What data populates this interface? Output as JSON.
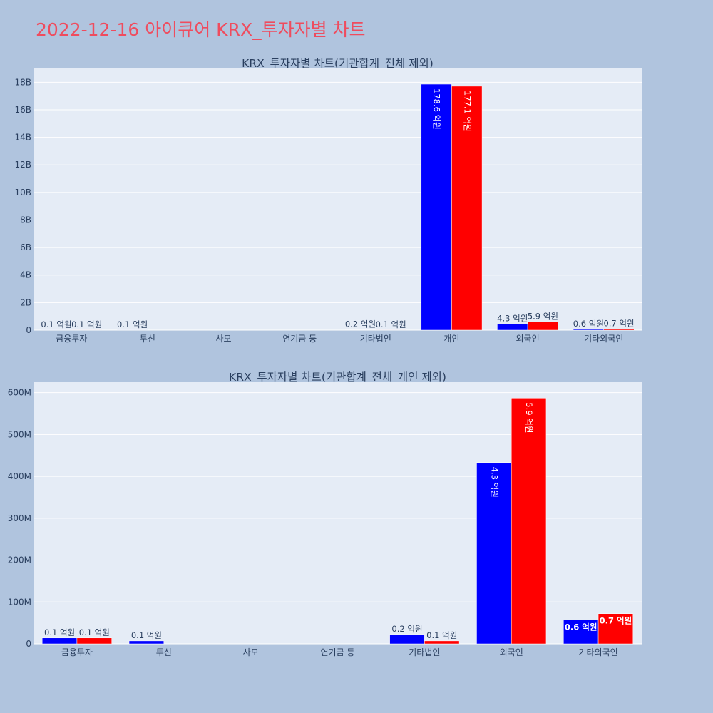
{
  "page_title": "2022-12-16 아이큐어 KRX_투자자별 차트",
  "chart_data": [
    {
      "type": "bar",
      "title": "KRX_투자자별 차트(기관합계_전체 제외)",
      "categories": [
        "금융투자",
        "투신",
        "사모",
        "연기금 등",
        "기타법인",
        "개인",
        "외국인",
        "기타외국인"
      ],
      "series": [
        {
          "color": "#0000ff",
          "values": [
            10000000,
            10000000,
            0,
            0,
            20000000,
            17860000000,
            430000000,
            60000000
          ],
          "labels": [
            "0.1 억원",
            "0.1 억원",
            "",
            "",
            "0.2 억원",
            "178.6 억원",
            "4.3 억원",
            "0.6 억원"
          ]
        },
        {
          "color": "#ff0000",
          "values": [
            10000000,
            0,
            0,
            0,
            10000000,
            17710000000,
            590000000,
            70000000
          ],
          "labels": [
            "0.1 억원",
            "",
            "",
            "",
            "0.1 억원",
            "177.1 억원",
            "5.9 억원",
            "0.7 억원"
          ]
        }
      ],
      "ylim": [
        0,
        19000000000
      ],
      "yticks": [
        0,
        2000000000,
        4000000000,
        6000000000,
        8000000000,
        10000000000,
        12000000000,
        14000000000,
        16000000000,
        18000000000
      ],
      "ytick_labels": [
        "0",
        "2B",
        "4B",
        "6B",
        "8B",
        "10B",
        "12B",
        "14B",
        "16B",
        "18B"
      ],
      "grid": true
    },
    {
      "type": "bar",
      "title": "KRX_투자자별 차트(기관합계_전체_개인 제외)",
      "categories": [
        "금융투자",
        "투신",
        "사모",
        "연기금 등",
        "기타법인",
        "외국인",
        "기타외국인"
      ],
      "series": [
        {
          "color": "#0000ff",
          "values": [
            14000000,
            7000000,
            0,
            0,
            22000000,
            433000000,
            57000000
          ],
          "labels": [
            "0.1 억원",
            "0.1 억원",
            "",
            "",
            "0.2 억원",
            "4.3 억원",
            "0.6 억원"
          ]
        },
        {
          "color": "#ff0000",
          "values": [
            14000000,
            0,
            0,
            0,
            7000000,
            587000000,
            72000000
          ],
          "labels": [
            "0.1 억원",
            "",
            "",
            "",
            "0.1 억원",
            "5.9 억원",
            "0.7 억원"
          ]
        }
      ],
      "ylim": [
        0,
        625000000
      ],
      "yticks": [
        0,
        100000000,
        200000000,
        300000000,
        400000000,
        500000000,
        600000000
      ],
      "ytick_labels": [
        "0",
        "100M",
        "200M",
        "300M",
        "400M",
        "500M",
        "600M"
      ],
      "grid": true
    }
  ]
}
